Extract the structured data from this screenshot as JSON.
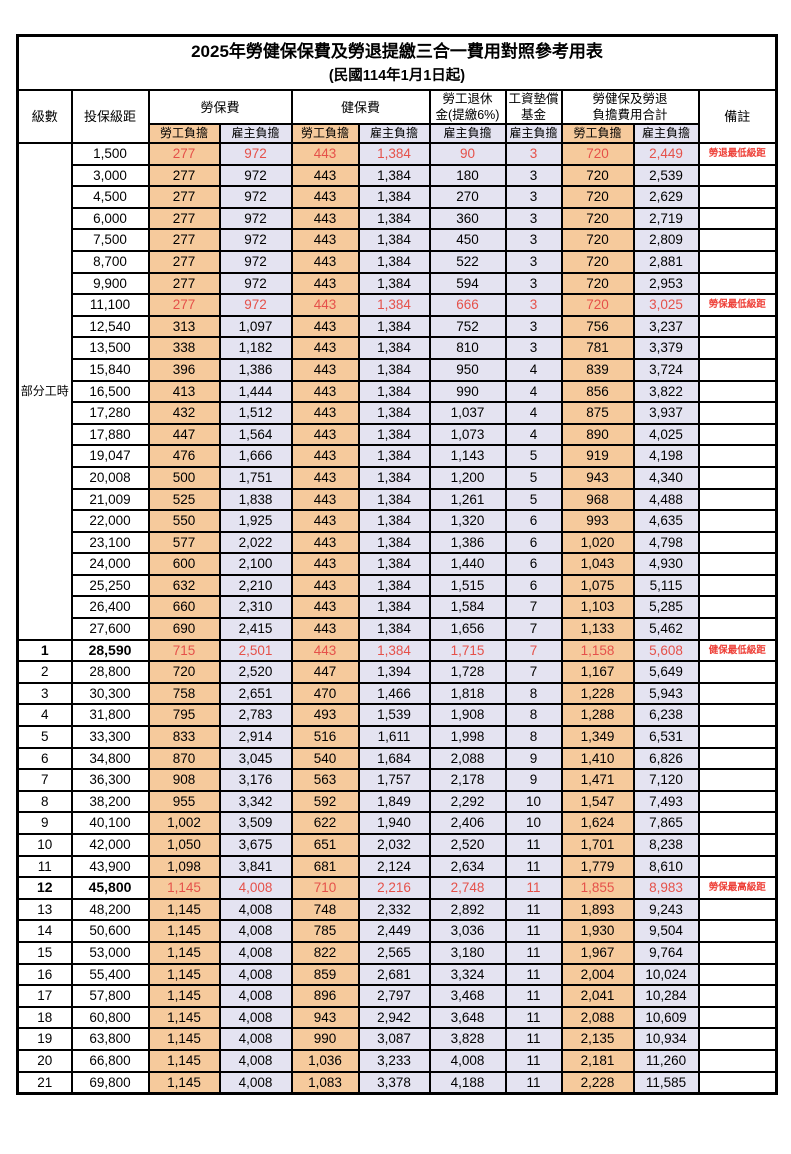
{
  "title": "2025年勞健保保費及勞退提繳三合一費用對照參考用表",
  "subtitle": "(民國114年1月1日起)",
  "columns": {
    "level": "級數",
    "salary": "投保級距",
    "labor_ins": "勞保費",
    "health_ins": "健保費",
    "pension_line1": "勞工退休",
    "pension_line2": "金(提繳6%)",
    "wage_fund_line1": "工資墊償",
    "wage_fund_line2": "基金",
    "total_line1": "勞健保及勞退",
    "total_line2": "負擔費用合計",
    "remark": "備註",
    "employee": "勞工負擔",
    "employer": "雇主負擔"
  },
  "part_time_label": "部分工時",
  "part_time_span": 23,
  "colors": {
    "employee_bg": "#f6ca9c",
    "employer_bg": "#e4e3f1",
    "highlight_text": "#e5514a",
    "remark_text": "#ee4038",
    "border": "#000000"
  },
  "rows": [
    {
      "level": "",
      "salary": "1,500",
      "values": [
        "277",
        "972",
        "443",
        "1,384",
        "90",
        "3",
        "720",
        "2,449"
      ],
      "remark": "勞退最低級距",
      "red": true,
      "bold": false
    },
    {
      "level": "",
      "salary": "3,000",
      "values": [
        "277",
        "972",
        "443",
        "1,384",
        "180",
        "3",
        "720",
        "2,539"
      ],
      "remark": "",
      "red": false,
      "bold": false
    },
    {
      "level": "",
      "salary": "4,500",
      "values": [
        "277",
        "972",
        "443",
        "1,384",
        "270",
        "3",
        "720",
        "2,629"
      ],
      "remark": "",
      "red": false,
      "bold": false
    },
    {
      "level": "",
      "salary": "6,000",
      "values": [
        "277",
        "972",
        "443",
        "1,384",
        "360",
        "3",
        "720",
        "2,719"
      ],
      "remark": "",
      "red": false,
      "bold": false
    },
    {
      "level": "",
      "salary": "7,500",
      "values": [
        "277",
        "972",
        "443",
        "1,384",
        "450",
        "3",
        "720",
        "2,809"
      ],
      "remark": "",
      "red": false,
      "bold": false
    },
    {
      "level": "",
      "salary": "8,700",
      "values": [
        "277",
        "972",
        "443",
        "1,384",
        "522",
        "3",
        "720",
        "2,881"
      ],
      "remark": "",
      "red": false,
      "bold": false
    },
    {
      "level": "",
      "salary": "9,900",
      "values": [
        "277",
        "972",
        "443",
        "1,384",
        "594",
        "3",
        "720",
        "2,953"
      ],
      "remark": "",
      "red": false,
      "bold": false
    },
    {
      "level": "",
      "salary": "11,100",
      "values": [
        "277",
        "972",
        "443",
        "1,384",
        "666",
        "3",
        "720",
        "3,025"
      ],
      "remark": "勞保最低級距",
      "red": true,
      "bold": false
    },
    {
      "level": "",
      "salary": "12,540",
      "values": [
        "313",
        "1,097",
        "443",
        "1,384",
        "752",
        "3",
        "756",
        "3,237"
      ],
      "remark": "",
      "red": false,
      "bold": false
    },
    {
      "level": "",
      "salary": "13,500",
      "values": [
        "338",
        "1,182",
        "443",
        "1,384",
        "810",
        "3",
        "781",
        "3,379"
      ],
      "remark": "",
      "red": false,
      "bold": false
    },
    {
      "level": "",
      "salary": "15,840",
      "values": [
        "396",
        "1,386",
        "443",
        "1,384",
        "950",
        "4",
        "839",
        "3,724"
      ],
      "remark": "",
      "red": false,
      "bold": false
    },
    {
      "level": "",
      "salary": "16,500",
      "values": [
        "413",
        "1,444",
        "443",
        "1,384",
        "990",
        "4",
        "856",
        "3,822"
      ],
      "remark": "",
      "red": false,
      "bold": false
    },
    {
      "level": "",
      "salary": "17,280",
      "values": [
        "432",
        "1,512",
        "443",
        "1,384",
        "1,037",
        "4",
        "875",
        "3,937"
      ],
      "remark": "",
      "red": false,
      "bold": false
    },
    {
      "level": "",
      "salary": "17,880",
      "values": [
        "447",
        "1,564",
        "443",
        "1,384",
        "1,073",
        "4",
        "890",
        "4,025"
      ],
      "remark": "",
      "red": false,
      "bold": false
    },
    {
      "level": "",
      "salary": "19,047",
      "values": [
        "476",
        "1,666",
        "443",
        "1,384",
        "1,143",
        "5",
        "919",
        "4,198"
      ],
      "remark": "",
      "red": false,
      "bold": false
    },
    {
      "level": "",
      "salary": "20,008",
      "values": [
        "500",
        "1,751",
        "443",
        "1,384",
        "1,200",
        "5",
        "943",
        "4,340"
      ],
      "remark": "",
      "red": false,
      "bold": false
    },
    {
      "level": "",
      "salary": "21,009",
      "values": [
        "525",
        "1,838",
        "443",
        "1,384",
        "1,261",
        "5",
        "968",
        "4,488"
      ],
      "remark": "",
      "red": false,
      "bold": false
    },
    {
      "level": "",
      "salary": "22,000",
      "values": [
        "550",
        "1,925",
        "443",
        "1,384",
        "1,320",
        "6",
        "993",
        "4,635"
      ],
      "remark": "",
      "red": false,
      "bold": false
    },
    {
      "level": "",
      "salary": "23,100",
      "values": [
        "577",
        "2,022",
        "443",
        "1,384",
        "1,386",
        "6",
        "1,020",
        "4,798"
      ],
      "remark": "",
      "red": false,
      "bold": false
    },
    {
      "level": "",
      "salary": "24,000",
      "values": [
        "600",
        "2,100",
        "443",
        "1,384",
        "1,440",
        "6",
        "1,043",
        "4,930"
      ],
      "remark": "",
      "red": false,
      "bold": false
    },
    {
      "level": "",
      "salary": "25,250",
      "values": [
        "632",
        "2,210",
        "443",
        "1,384",
        "1,515",
        "6",
        "1,075",
        "5,115"
      ],
      "remark": "",
      "red": false,
      "bold": false
    },
    {
      "level": "",
      "salary": "26,400",
      "values": [
        "660",
        "2,310",
        "443",
        "1,384",
        "1,584",
        "7",
        "1,103",
        "5,285"
      ],
      "remark": "",
      "red": false,
      "bold": false
    },
    {
      "level": "",
      "salary": "27,600",
      "values": [
        "690",
        "2,415",
        "443",
        "1,384",
        "1,656",
        "7",
        "1,133",
        "5,462"
      ],
      "remark": "",
      "red": false,
      "bold": false
    },
    {
      "level": "1",
      "salary": "28,590",
      "values": [
        "715",
        "2,501",
        "443",
        "1,384",
        "1,715",
        "7",
        "1,158",
        "5,608"
      ],
      "remark": "健保最低級距",
      "red": true,
      "bold": true
    },
    {
      "level": "2",
      "salary": "28,800",
      "values": [
        "720",
        "2,520",
        "447",
        "1,394",
        "1,728",
        "7",
        "1,167",
        "5,649"
      ],
      "remark": "",
      "red": false,
      "bold": false
    },
    {
      "level": "3",
      "salary": "30,300",
      "values": [
        "758",
        "2,651",
        "470",
        "1,466",
        "1,818",
        "8",
        "1,228",
        "5,943"
      ],
      "remark": "",
      "red": false,
      "bold": false
    },
    {
      "level": "4",
      "salary": "31,800",
      "values": [
        "795",
        "2,783",
        "493",
        "1,539",
        "1,908",
        "8",
        "1,288",
        "6,238"
      ],
      "remark": "",
      "red": false,
      "bold": false
    },
    {
      "level": "5",
      "salary": "33,300",
      "values": [
        "833",
        "2,914",
        "516",
        "1,611",
        "1,998",
        "8",
        "1,349",
        "6,531"
      ],
      "remark": "",
      "red": false,
      "bold": false
    },
    {
      "level": "6",
      "salary": "34,800",
      "values": [
        "870",
        "3,045",
        "540",
        "1,684",
        "2,088",
        "9",
        "1,410",
        "6,826"
      ],
      "remark": "",
      "red": false,
      "bold": false
    },
    {
      "level": "7",
      "salary": "36,300",
      "values": [
        "908",
        "3,176",
        "563",
        "1,757",
        "2,178",
        "9",
        "1,471",
        "7,120"
      ],
      "remark": "",
      "red": false,
      "bold": false
    },
    {
      "level": "8",
      "salary": "38,200",
      "values": [
        "955",
        "3,342",
        "592",
        "1,849",
        "2,292",
        "10",
        "1,547",
        "7,493"
      ],
      "remark": "",
      "red": false,
      "bold": false
    },
    {
      "level": "9",
      "salary": "40,100",
      "values": [
        "1,002",
        "3,509",
        "622",
        "1,940",
        "2,406",
        "10",
        "1,624",
        "7,865"
      ],
      "remark": "",
      "red": false,
      "bold": false
    },
    {
      "level": "10",
      "salary": "42,000",
      "values": [
        "1,050",
        "3,675",
        "651",
        "2,032",
        "2,520",
        "11",
        "1,701",
        "8,238"
      ],
      "remark": "",
      "red": false,
      "bold": false
    },
    {
      "level": "11",
      "salary": "43,900",
      "values": [
        "1,098",
        "3,841",
        "681",
        "2,124",
        "2,634",
        "11",
        "1,779",
        "8,610"
      ],
      "remark": "",
      "red": false,
      "bold": false
    },
    {
      "level": "12",
      "salary": "45,800",
      "values": [
        "1,145",
        "4,008",
        "710",
        "2,216",
        "2,748",
        "11",
        "1,855",
        "8,983"
      ],
      "remark": "勞保最高級距",
      "red": true,
      "bold": true
    },
    {
      "level": "13",
      "salary": "48,200",
      "values": [
        "1,145",
        "4,008",
        "748",
        "2,332",
        "2,892",
        "11",
        "1,893",
        "9,243"
      ],
      "remark": "",
      "red": false,
      "bold": false
    },
    {
      "level": "14",
      "salary": "50,600",
      "values": [
        "1,145",
        "4,008",
        "785",
        "2,449",
        "3,036",
        "11",
        "1,930",
        "9,504"
      ],
      "remark": "",
      "red": false,
      "bold": false
    },
    {
      "level": "15",
      "salary": "53,000",
      "values": [
        "1,145",
        "4,008",
        "822",
        "2,565",
        "3,180",
        "11",
        "1,967",
        "9,764"
      ],
      "remark": "",
      "red": false,
      "bold": false
    },
    {
      "level": "16",
      "salary": "55,400",
      "values": [
        "1,145",
        "4,008",
        "859",
        "2,681",
        "3,324",
        "11",
        "2,004",
        "10,024"
      ],
      "remark": "",
      "red": false,
      "bold": false
    },
    {
      "level": "17",
      "salary": "57,800",
      "values": [
        "1,145",
        "4,008",
        "896",
        "2,797",
        "3,468",
        "11",
        "2,041",
        "10,284"
      ],
      "remark": "",
      "red": false,
      "bold": false
    },
    {
      "level": "18",
      "salary": "60,800",
      "values": [
        "1,145",
        "4,008",
        "943",
        "2,942",
        "3,648",
        "11",
        "2,088",
        "10,609"
      ],
      "remark": "",
      "red": false,
      "bold": false
    },
    {
      "level": "19",
      "salary": "63,800",
      "values": [
        "1,145",
        "4,008",
        "990",
        "3,087",
        "3,828",
        "11",
        "2,135",
        "10,934"
      ],
      "remark": "",
      "red": false,
      "bold": false
    },
    {
      "level": "20",
      "salary": "66,800",
      "values": [
        "1,145",
        "4,008",
        "1,036",
        "3,233",
        "4,008",
        "11",
        "2,181",
        "11,260"
      ],
      "remark": "",
      "red": false,
      "bold": false
    },
    {
      "level": "21",
      "salary": "69,800",
      "values": [
        "1,145",
        "4,008",
        "1,083",
        "3,378",
        "4,188",
        "11",
        "2,228",
        "11,585"
      ],
      "remark": "",
      "red": false,
      "bold": false
    }
  ]
}
